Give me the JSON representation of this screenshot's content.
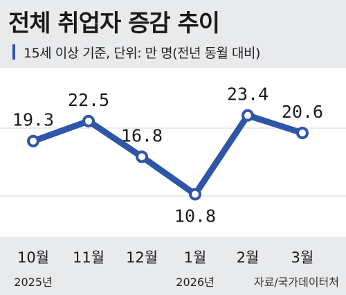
{
  "header": {
    "title": "전체 취업자 증감 추이",
    "subtitle": "15세 이상 기준, 단위: 만 명(전년 동월 대비)"
  },
  "footer": {
    "source": "자료/국가데이터처"
  },
  "colors": {
    "line": "#2f56a6",
    "marker_fill": "#ffffff",
    "background": "#e9eaec",
    "plot_background": "#ffffff",
    "grid": "#d6d6d6"
  },
  "chart_data": {
    "type": "line",
    "categories": [
      "10월",
      "11월",
      "12월",
      "1월",
      "2월",
      "3월"
    ],
    "year_labels": [
      {
        "category_index": 0,
        "label": "2025년"
      },
      {
        "category_index": 3,
        "label": "2026년"
      }
    ],
    "series": [
      {
        "values": [
          19.3,
          22.5,
          16.8,
          10.8,
          23.4,
          20.6
        ]
      }
    ],
    "data_labels": [
      "19.3",
      "22.5",
      "16.8",
      "10.8",
      "23.4",
      "20.6"
    ],
    "data_label_positions": [
      "above",
      "above",
      "above",
      "below",
      "above",
      "above"
    ],
    "ylim": [
      4,
      31
    ],
    "grid": true,
    "title": "전체 취업자 증감 추이",
    "xlabel": "",
    "ylabel": ""
  }
}
